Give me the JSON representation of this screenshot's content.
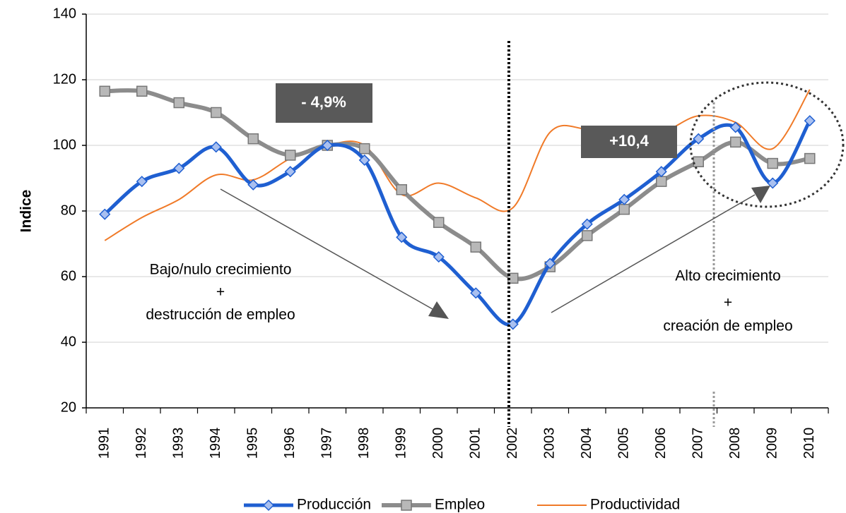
{
  "chart_data": {
    "type": "line",
    "y_label": "Indice",
    "categories": [
      "1991",
      "1992",
      "1993",
      "1994",
      "1995",
      "1996",
      "1997",
      "1998",
      "1999",
      "2000",
      "2001",
      "2002",
      "2003",
      "2004",
      "2005",
      "2006",
      "2007",
      "2008",
      "2009",
      "2010"
    ],
    "series": [
      {
        "name": "Producción",
        "color": "#1f5fd1",
        "marker": "diamond",
        "marker_color": "#a9c0f0",
        "values": [
          79,
          89,
          93,
          99.5,
          88,
          92,
          100,
          95.5,
          72,
          66,
          55,
          45.5,
          64,
          76,
          83.5,
          92,
          102,
          105.5,
          88.5,
          107.5
        ]
      },
      {
        "name": "Empleo",
        "color": "#8c8c8c",
        "marker": "square",
        "marker_color": "#b8b8b8",
        "values": [
          116.5,
          116.5,
          113,
          110,
          102,
          97,
          100,
          99,
          86.5,
          76.5,
          69,
          59.5,
          63,
          72.5,
          80.5,
          89,
          95,
          101,
          94.5,
          96
        ]
      },
      {
        "name": "Productividad",
        "color": "#f07a28",
        "marker": "none",
        "values": [
          71,
          78,
          83.5,
          91,
          89.5,
          96,
          100,
          100,
          85,
          88.5,
          84,
          81,
          104,
          105,
          104.5,
          104,
          109,
          107,
          99,
          117
        ]
      }
    ],
    "ylim": [
      20,
      140
    ],
    "yticks": [
      20,
      40,
      60,
      80,
      100,
      120,
      140
    ],
    "grid": true,
    "legend": "bottom",
    "annotations": [
      "- 4,9%",
      "+10,4",
      "Bajo/nulo crecimiento",
      "+",
      "destrucción de empleo",
      "Alto crecimiento",
      "+",
      "creación de empleo"
    ]
  }
}
